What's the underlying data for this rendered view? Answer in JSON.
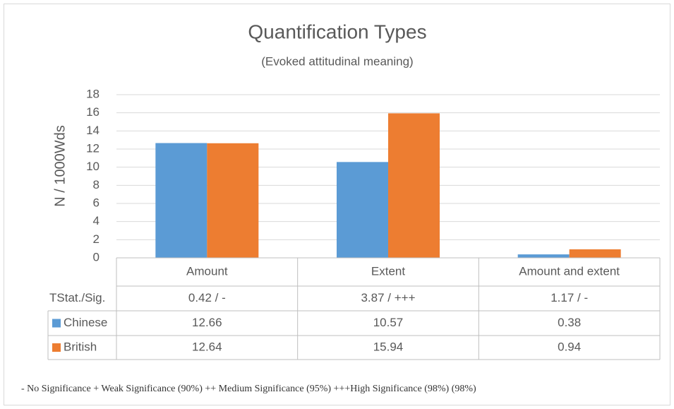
{
  "chart_data": {
    "type": "bar",
    "title": "Quantification Types",
    "subtitle": "(Evoked attitudinal meaning)",
    "y_label": "N / 1000Wds",
    "categories": [
      "Amount",
      "Extent",
      "Amount and extent"
    ],
    "series": [
      {
        "name": "Chinese",
        "color": "#5b9bd5",
        "values": [
          12.66,
          10.57,
          0.38
        ]
      },
      {
        "name": "British",
        "color": "#ed7d31",
        "values": [
          12.64,
          15.94,
          0.94
        ]
      }
    ],
    "ylim": [
      0,
      18
    ],
    "yticks": [
      0,
      2,
      4,
      6,
      8,
      10,
      12,
      14,
      16,
      18
    ],
    "grid": true,
    "stat_row_label": "TStat./Sig.",
    "stat_values": [
      "0.42 / -",
      "3.87 / +++",
      "1.17 / -"
    ],
    "footnote": "- No Significance  + Weak Significance (90%) ++ Medium Significance (95%) +++High Significance (98%) (98%)"
  }
}
